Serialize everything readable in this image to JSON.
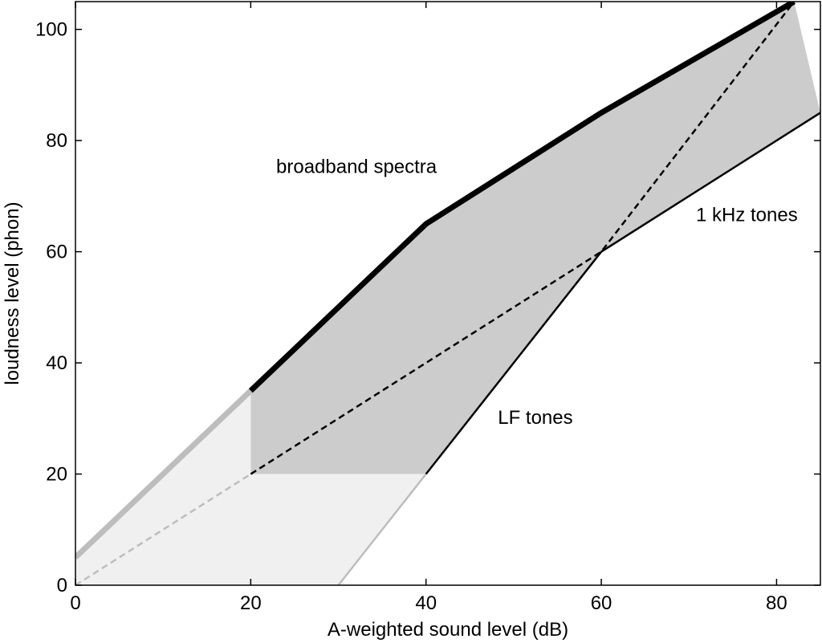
{
  "chart_data": {
    "type": "line",
    "xlabel": "A-weighted sound level (dB)",
    "ylabel": "loudness level (phon)",
    "xlim": [
      0,
      85
    ],
    "ylim": [
      0,
      105
    ],
    "x_ticks": [
      0,
      20,
      40,
      60,
      80
    ],
    "y_ticks": [
      0,
      20,
      40,
      60,
      80,
      100
    ],
    "grid": false,
    "legend": "none",
    "colors": {
      "band_dark": "#cccccc",
      "band_light": "#f0f0f0",
      "line_dark": "#000000",
      "line_light": "#bdbdbd"
    },
    "regions": [
      {
        "id": "shaded-band-main",
        "fill": "#cccccc",
        "points": [
          [
            20,
            35
          ],
          [
            40,
            65
          ],
          [
            60,
            85
          ],
          [
            82,
            105
          ],
          [
            85,
            85
          ],
          [
            60,
            60
          ],
          [
            40,
            20
          ],
          [
            20,
            20
          ]
        ]
      },
      {
        "id": "shaded-band-low",
        "fill": "#f0f0f0",
        "points": [
          [
            0,
            5
          ],
          [
            20,
            35
          ],
          [
            20,
            20
          ],
          [
            40,
            20
          ],
          [
            30,
            0
          ],
          [
            0,
            0
          ]
        ]
      }
    ],
    "series": [
      {
        "name": "broadband spectra",
        "style": "solid-thick",
        "color": "#000000",
        "x": [
          20,
          40,
          60,
          82
        ],
        "y": [
          35,
          65,
          85,
          105
        ],
        "extension": {
          "color": "#bdbdbd",
          "x": [
            0,
            20
          ],
          "y": [
            5,
            35
          ]
        }
      },
      {
        "name": "1 kHz tones",
        "style": "solid",
        "color": "#000000",
        "x": [
          60,
          85
        ],
        "y": [
          60,
          85
        ]
      },
      {
        "name": "LF tones",
        "style": "solid",
        "color": "#000000",
        "x": [
          40,
          60
        ],
        "y": [
          20,
          60
        ],
        "extension": {
          "color": "#bdbdbd",
          "x": [
            30,
            40
          ],
          "y": [
            0,
            20
          ]
        }
      },
      {
        "name": "dashed",
        "style": "dashed",
        "color": "#000000",
        "x": [
          20,
          40,
          60,
          82
        ],
        "y": [
          20,
          40,
          60,
          105
        ],
        "extension": {
          "color": "#bdbdbd",
          "x": [
            0,
            20
          ],
          "y": [
            0,
            20
          ]
        }
      }
    ],
    "annotations": [
      {
        "id": "broadband",
        "text": "broadband spectra",
        "x": 22.9,
        "y": 74.2
      },
      {
        "id": "khz",
        "text": "1 kHz tones",
        "x": 70.8,
        "y": 65.5
      },
      {
        "id": "lf",
        "text": "LF tones",
        "x": 48.2,
        "y": 29.0
      }
    ]
  }
}
